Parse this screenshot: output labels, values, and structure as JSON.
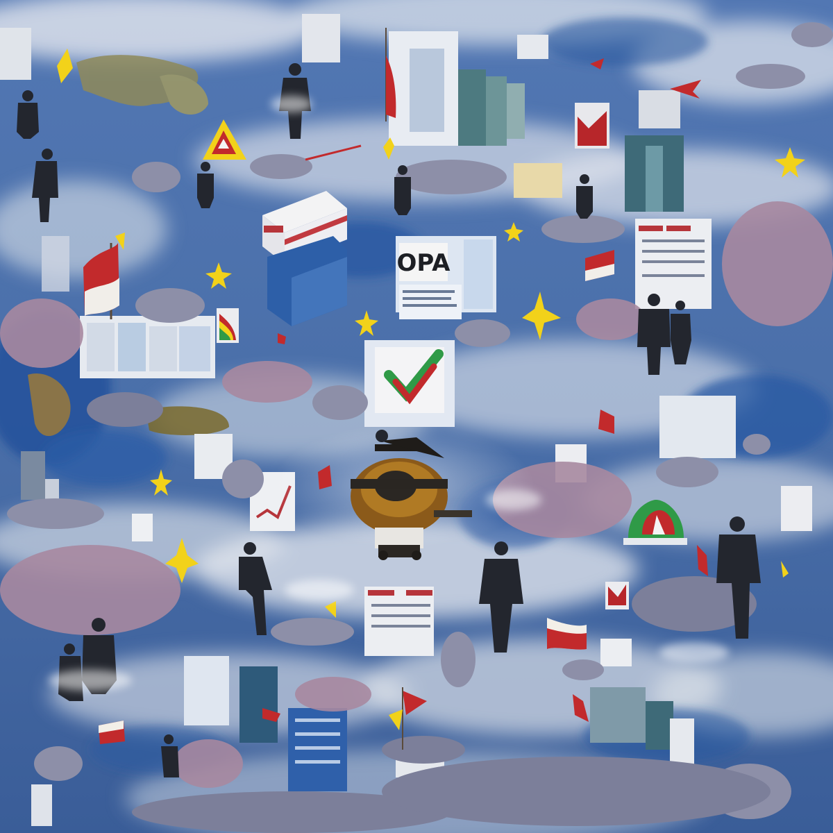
{
  "artwork": {
    "style": "impressionist painted collage",
    "palette": {
      "sky_blue": "#3f68a8",
      "deep_blue": "#1f4f9a",
      "cloud": "#dfe3ea",
      "pale": "#eef1f5",
      "suit": "#2a2d36",
      "crowd": "#8d8fa8",
      "crowd_pink": "#b3899a",
      "red": "#c22a2c",
      "yellow": "#f2d21a",
      "green": "#2f9a47",
      "ochre": "#9b6a22"
    }
  },
  "sign": {
    "text": "OPA"
  }
}
